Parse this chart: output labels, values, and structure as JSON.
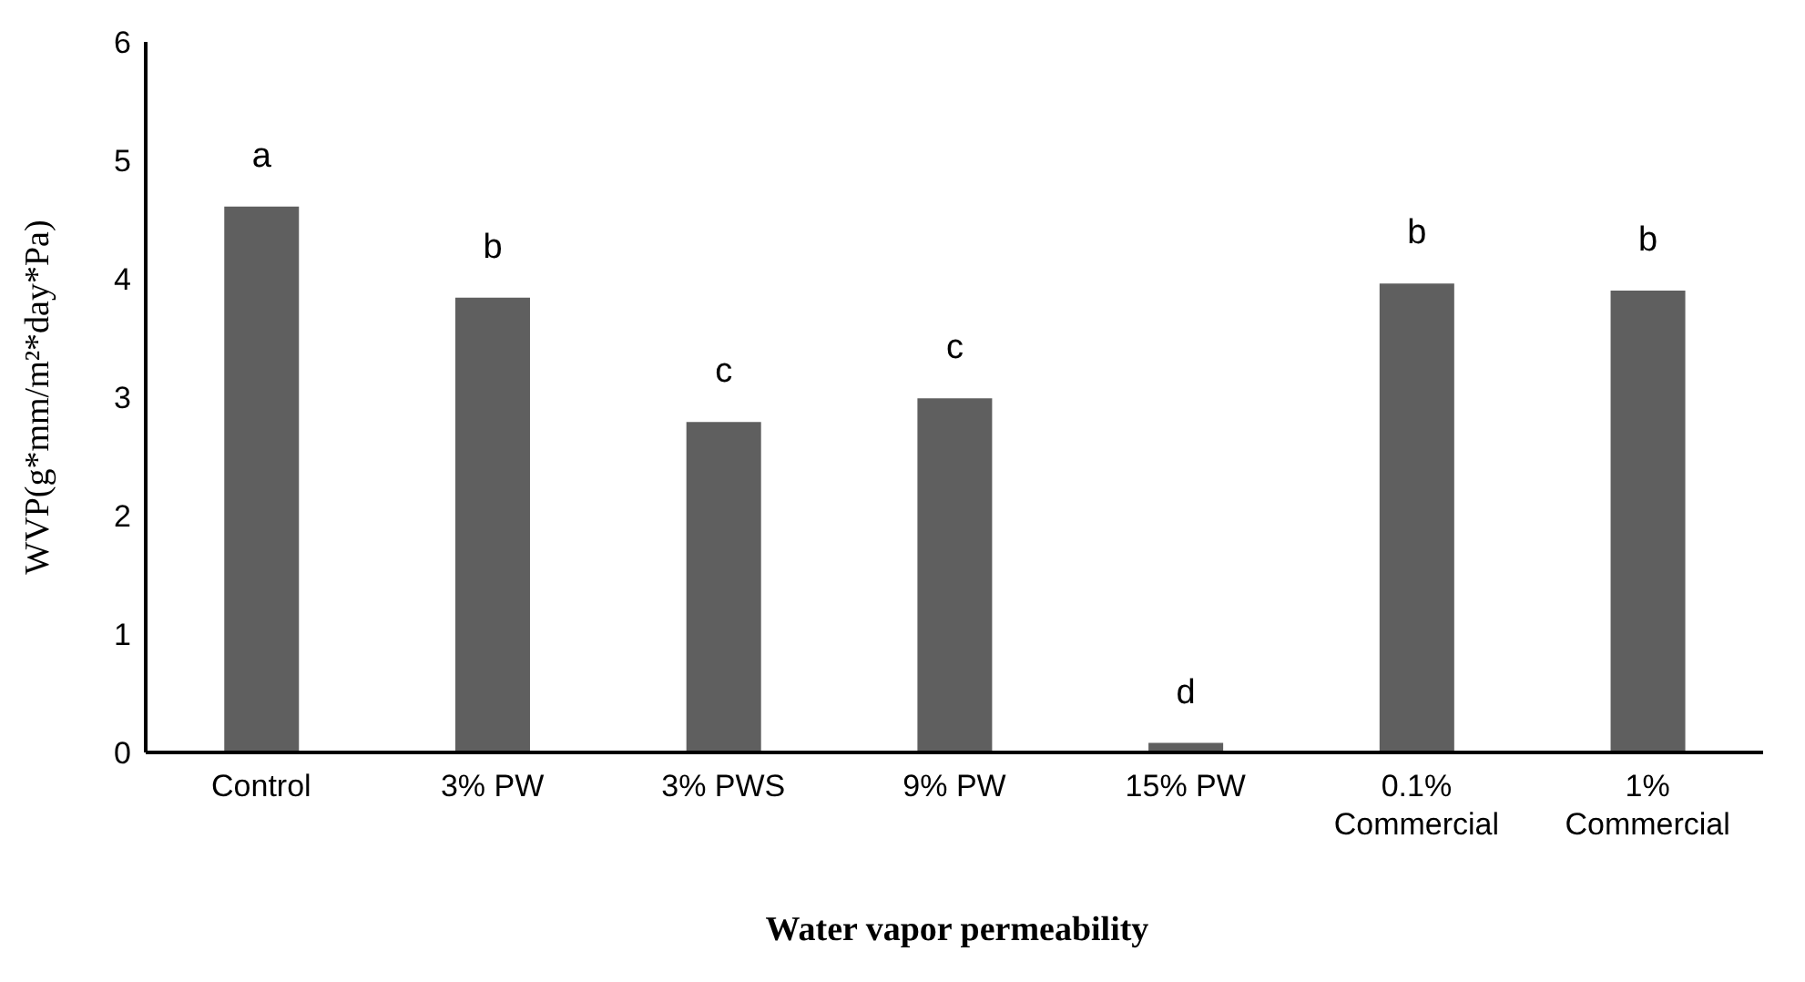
{
  "chart_data": {
    "type": "bar",
    "title": "Water vapor permeability",
    "ylabel": "WVP(g*mm/m²*day*Pa)",
    "categories": [
      "Control",
      "3% PW",
      "3% PWS",
      "9% PW",
      "15% PW",
      "0.1% Commercial",
      "1% Commercial"
    ],
    "values": [
      4.61,
      3.84,
      2.79,
      2.99,
      0.08,
      3.96,
      3.9
    ],
    "value_labels": [
      "a",
      "b",
      "c",
      "c",
      "d",
      "b",
      "b"
    ],
    "color": "#5f5f5f",
    "ylim": [
      0,
      6
    ],
    "yticks": [
      0,
      1,
      2,
      3,
      4,
      5,
      6
    ],
    "grid": false
  }
}
